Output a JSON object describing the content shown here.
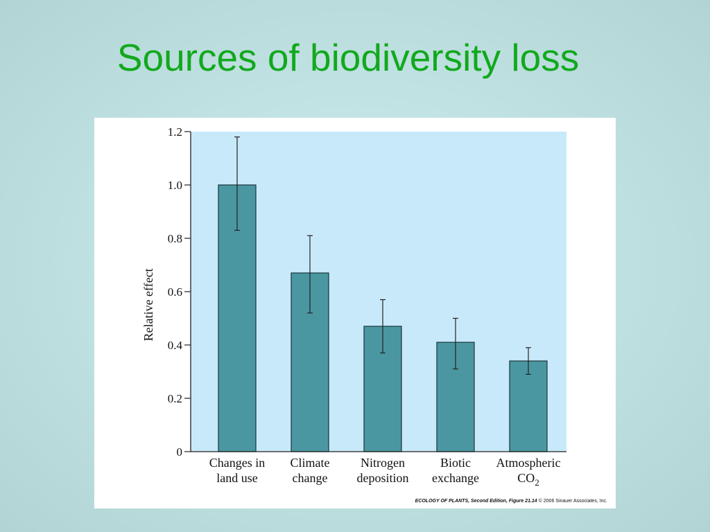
{
  "slide": {
    "title": "Sources of biodiversity loss"
  },
  "figure": {
    "credit_book": "ECOLOGY OF PLANTS, Second Edition, Figure 21.14",
    "credit_copyright": "© 2006 Sinauer Associates, Inc."
  },
  "colors": {
    "title": "#11a91d",
    "plot_background": "#c8e9f9",
    "bar_fill": "#4a97a2",
    "bar_stroke": "#1f3e44"
  },
  "chart_data": {
    "type": "bar",
    "title": "",
    "xlabel": "",
    "ylabel": "Relative effect",
    "ylim": [
      0,
      1.2
    ],
    "yticks": [
      "0",
      "0.2",
      "0.4",
      "0.6",
      "0.8",
      "1.0",
      "1.2"
    ],
    "categories": [
      [
        "Changes in",
        "land use"
      ],
      [
        "Climate",
        "change"
      ],
      [
        "Nitrogen",
        "deposition"
      ],
      [
        "Biotic",
        "exchange"
      ],
      [
        "Atmospheric",
        "CO2"
      ]
    ],
    "values": [
      1.0,
      0.67,
      0.47,
      0.41,
      0.34
    ],
    "error_low": [
      0.83,
      0.52,
      0.37,
      0.31,
      0.29
    ],
    "error_high": [
      1.18,
      0.81,
      0.57,
      0.5,
      0.39
    ],
    "grid": false,
    "legend": "none"
  }
}
